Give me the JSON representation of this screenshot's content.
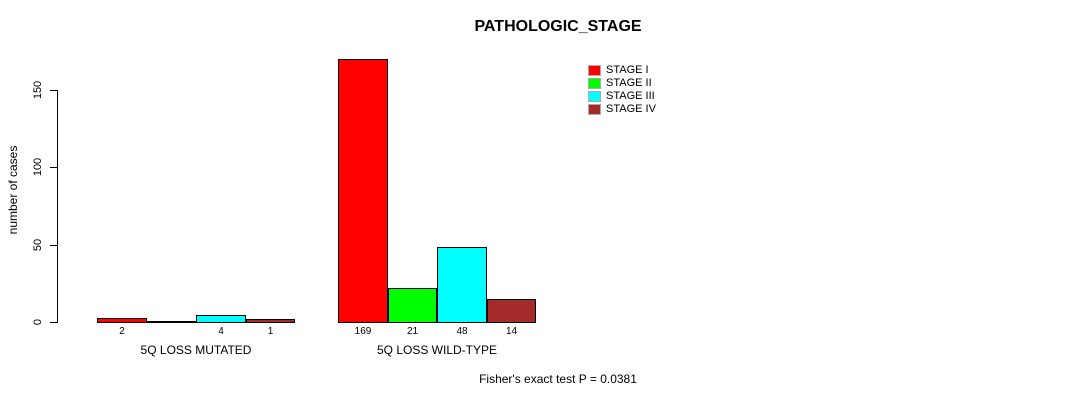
{
  "chart_data": {
    "type": "bar",
    "title": "PATHOLOGIC_STAGE",
    "ylabel": "number of cases",
    "ylim": [
      0,
      169
    ],
    "yticks": [
      0,
      50,
      100,
      150
    ],
    "grid": false,
    "legend_position": "top-right-outside",
    "series": [
      {
        "name": "STAGE I",
        "color": "#FF0000"
      },
      {
        "name": "STAGE II",
        "color": "#00FF00"
      },
      {
        "name": "STAGE III",
        "color": "#00FFFF"
      },
      {
        "name": "STAGE IV",
        "color": "#A52A2A"
      }
    ],
    "categories": [
      "5Q LOSS MUTATED",
      "5Q LOSS WILD-TYPE"
    ],
    "groups": [
      {
        "label": "5Q LOSS MUTATED",
        "values": [
          2,
          0,
          4,
          1
        ],
        "bar_labels": [
          "2",
          "",
          "4",
          "1"
        ]
      },
      {
        "label": "5Q LOSS WILD-TYPE",
        "values": [
          169,
          21,
          48,
          14
        ],
        "bar_labels": [
          "169",
          "21",
          "48",
          "14"
        ]
      }
    ],
    "footnote": "Fisher's exact test P = 0.0381"
  },
  "colors": {
    "axis": "#000000",
    "bar_border": "#000000",
    "background": "#FFFFFF"
  }
}
